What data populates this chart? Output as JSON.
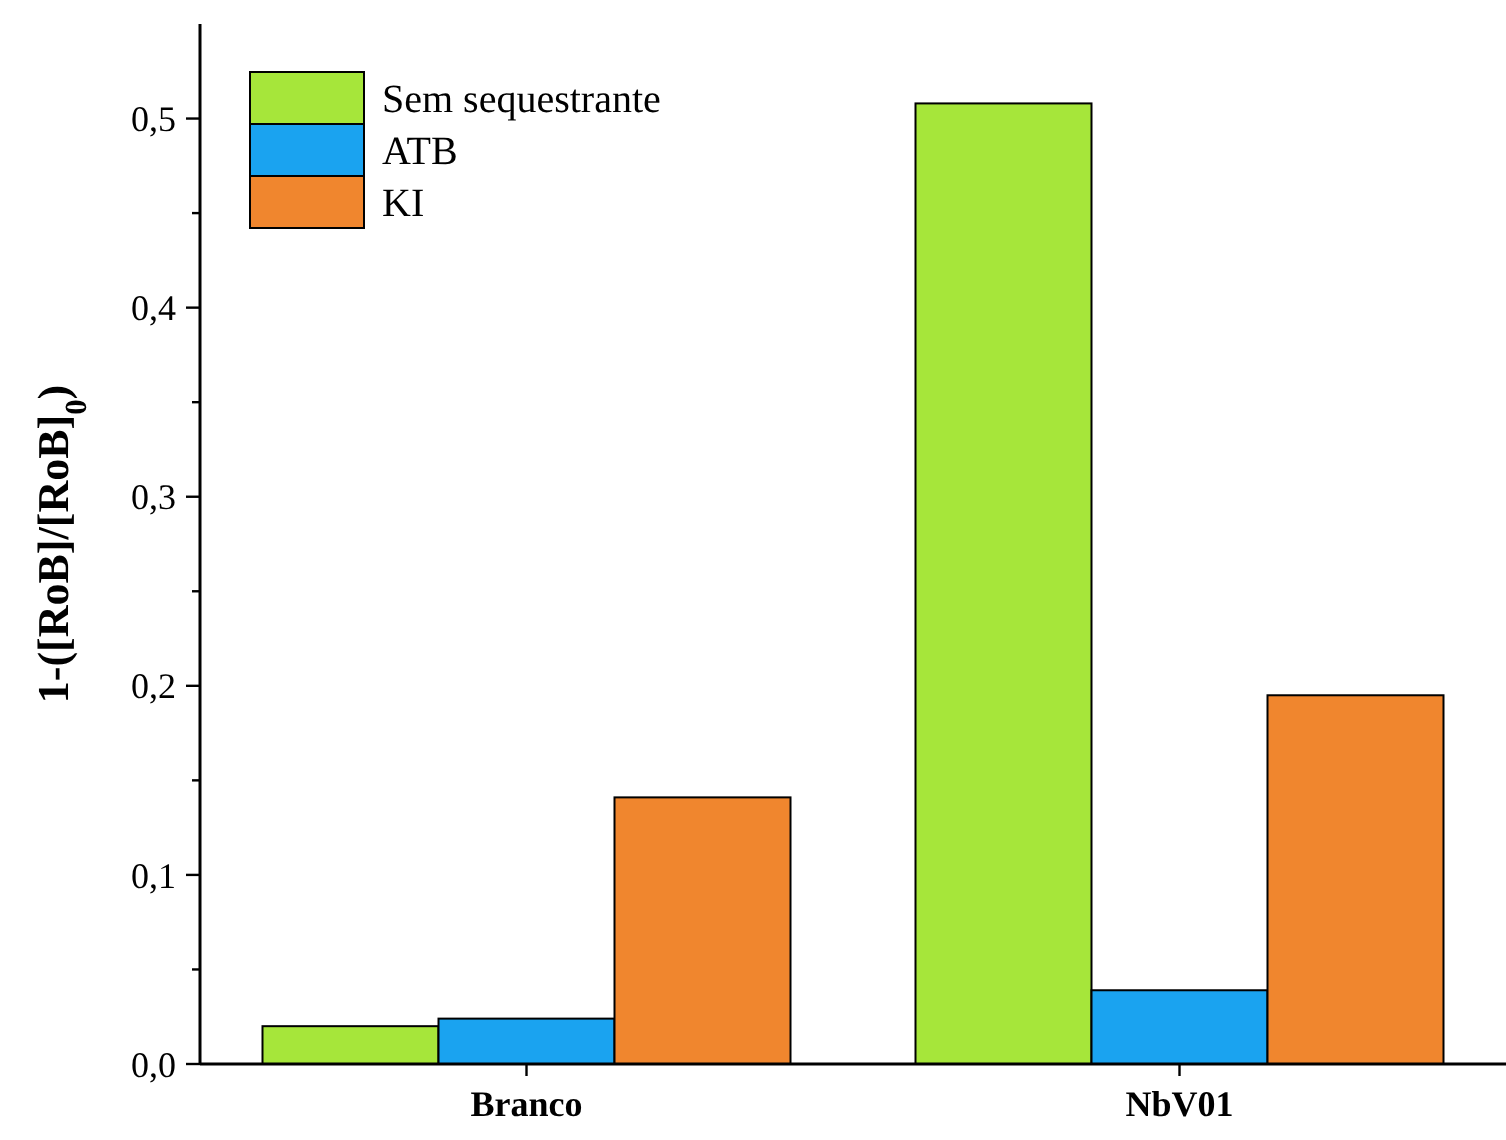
{
  "chart_data": {
    "type": "bar",
    "ylabel": "1-([RoB]/[RoB]$_{0}$)",
    "categories": [
      "Branco",
      "NbV01"
    ],
    "series": [
      {
        "name": "Sem sequestrante",
        "color": "#a6e63a",
        "values": [
          0.02,
          0.508
        ]
      },
      {
        "name": "ATB",
        "color": "#1aa3f0",
        "values": [
          0.024,
          0.039
        ]
      },
      {
        "name": "KI",
        "color": "#f0862e",
        "values": [
          0.141,
          0.195
        ]
      }
    ],
    "ylim": [
      0,
      0.55
    ],
    "yticks": [
      {
        "value": 0,
        "label": "0,0"
      },
      {
        "value": 0.05,
        "label": null
      },
      {
        "value": 0.1,
        "label": "0,1"
      },
      {
        "value": 0.15,
        "label": null
      },
      {
        "value": 0.2,
        "label": "0,2"
      },
      {
        "value": 0.25,
        "label": null
      },
      {
        "value": 0.3,
        "label": "0,3"
      },
      {
        "value": 0.35,
        "label": null
      },
      {
        "value": 0.4,
        "label": "0,4"
      },
      {
        "value": 0.45,
        "label": null
      },
      {
        "value": 0.5,
        "label": "0,5"
      }
    ],
    "legend": "top left",
    "grid": false
  }
}
